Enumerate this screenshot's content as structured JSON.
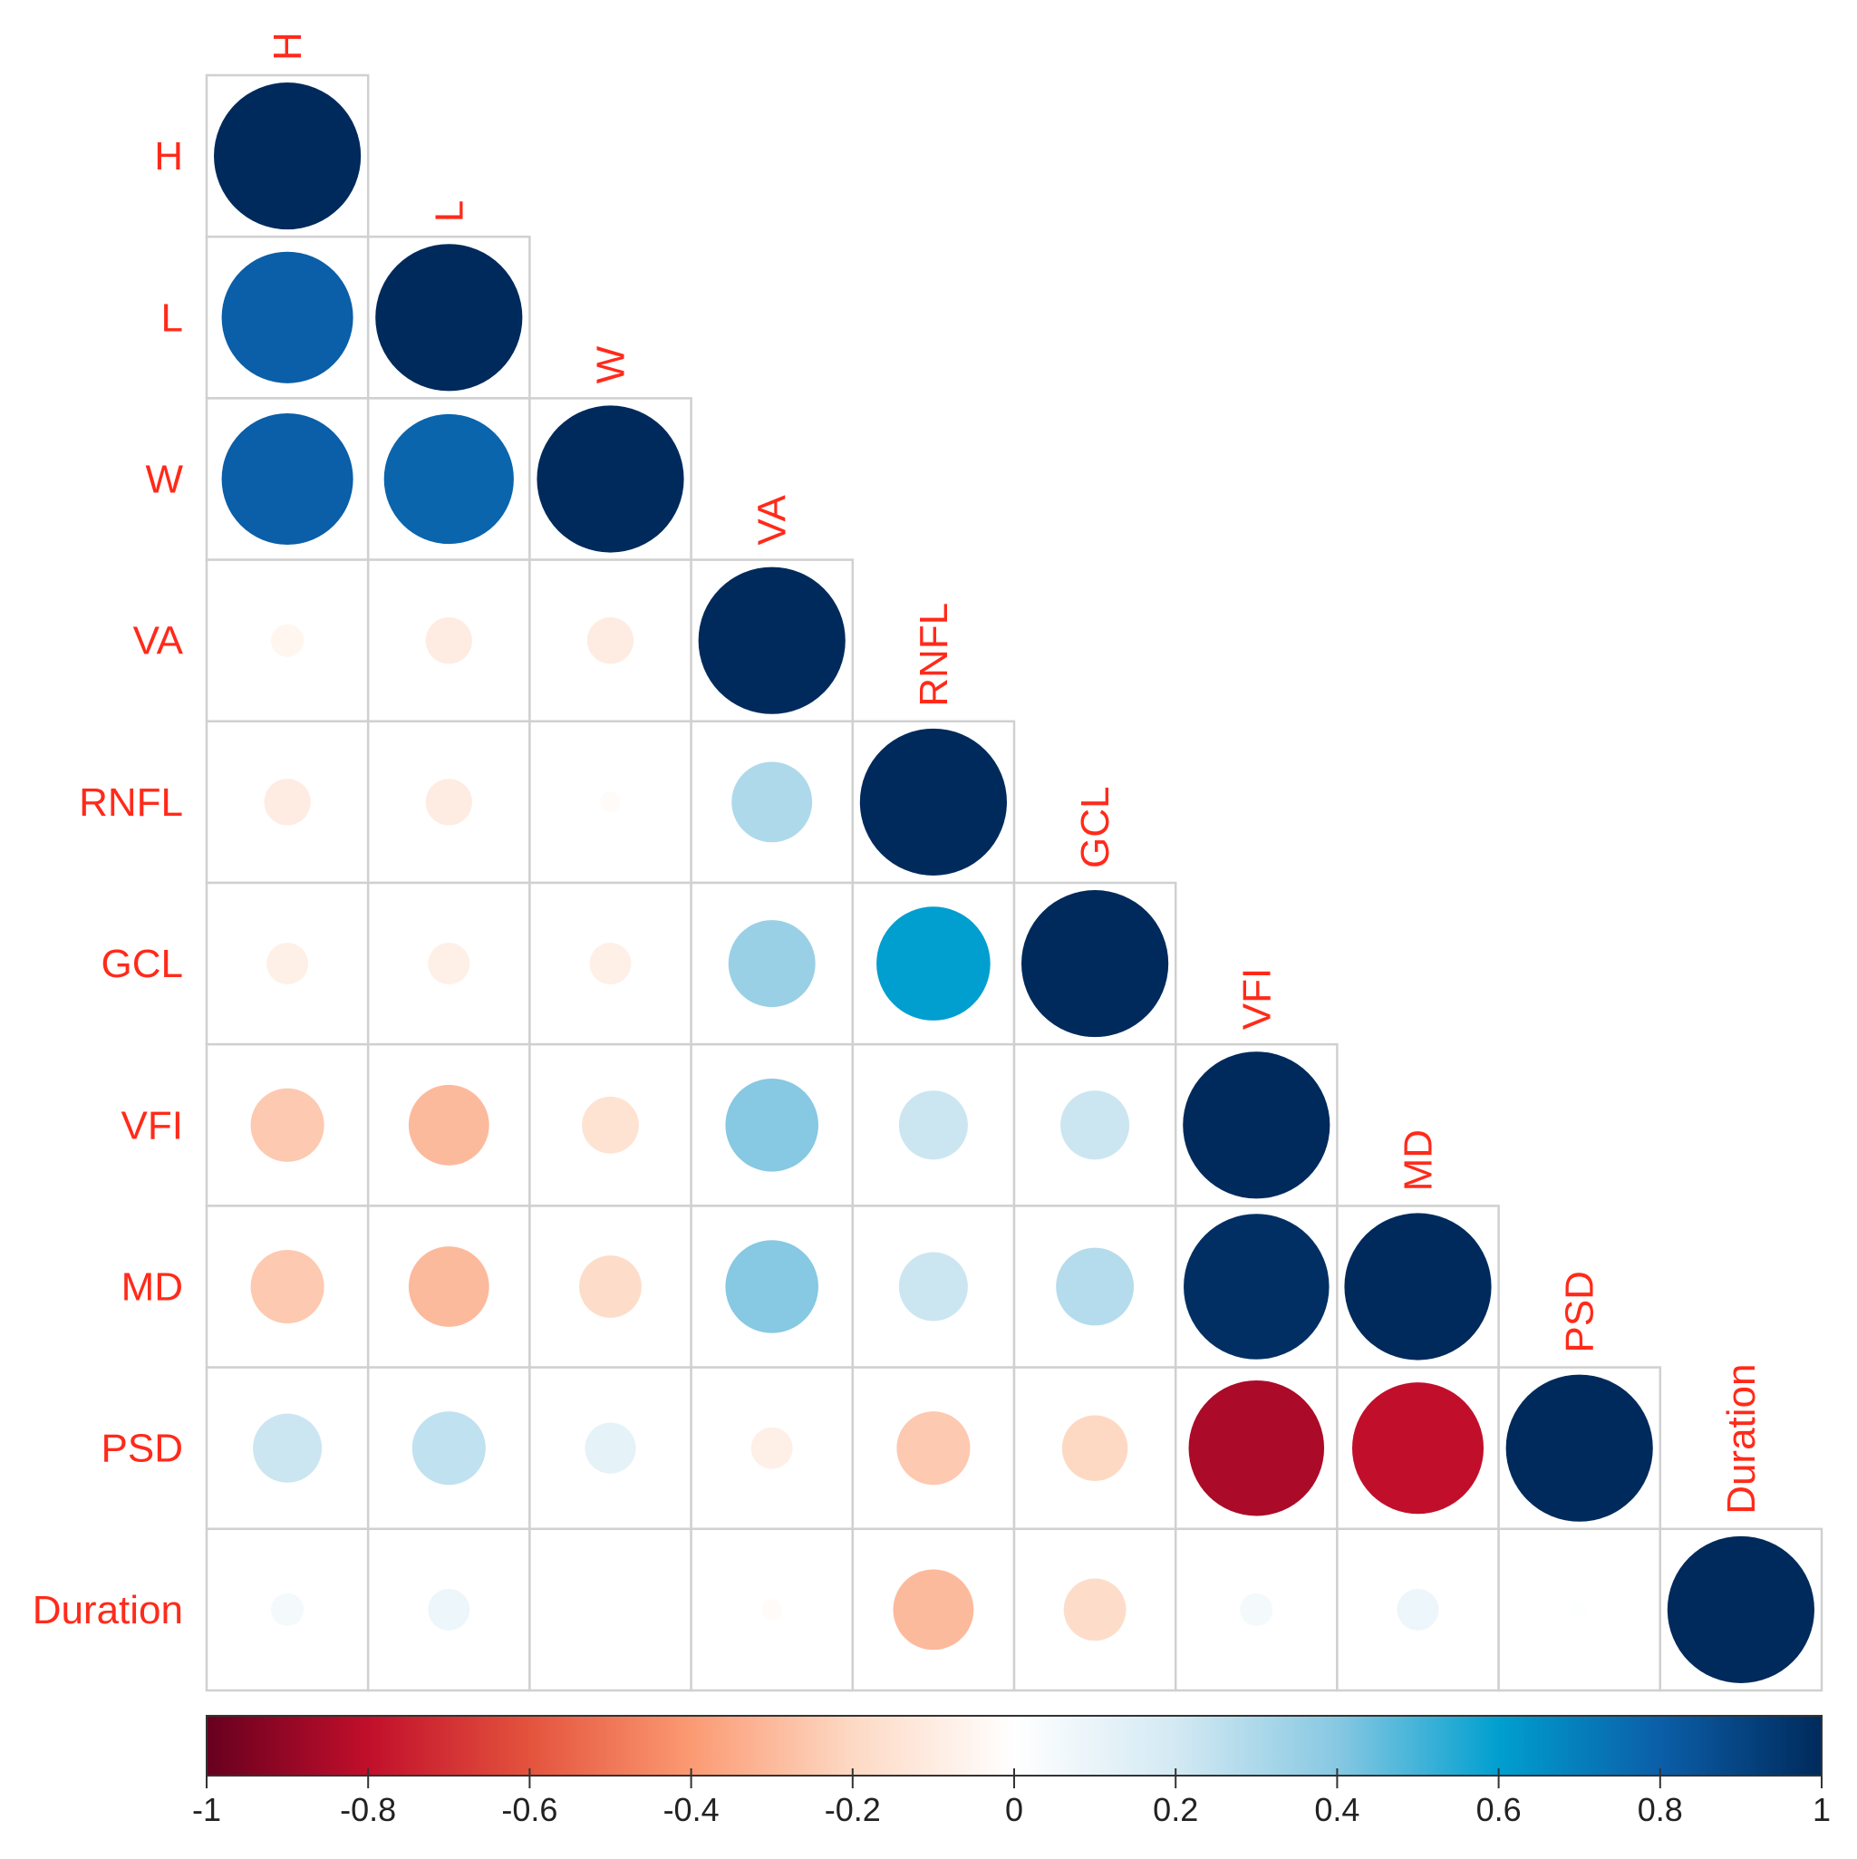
{
  "chart_data": {
    "type": "heatmap",
    "style": "correlation-circles-lower-triangle",
    "title": "",
    "variables": [
      "H",
      "L",
      "W",
      "VA",
      "RNFL",
      "GCL",
      "VFI",
      "MD",
      "PSD",
      "Duration"
    ],
    "matrix": [
      [
        1.0,
        null,
        null,
        null,
        null,
        null,
        null,
        null,
        null,
        null
      ],
      [
        0.8,
        1.0,
        null,
        null,
        null,
        null,
        null,
        null,
        null,
        null
      ],
      [
        0.8,
        0.78,
        1.0,
        null,
        null,
        null,
        null,
        null,
        null,
        null
      ],
      [
        -0.05,
        -0.1,
        -0.1,
        1.0,
        null,
        null,
        null,
        null,
        null,
        null
      ],
      [
        -0.1,
        -0.1,
        -0.02,
        0.3,
        1.0,
        null,
        null,
        null,
        null,
        null
      ],
      [
        -0.08,
        -0.08,
        -0.08,
        0.35,
        0.6,
        1.0,
        null,
        null,
        null,
        null
      ],
      [
        -0.25,
        -0.3,
        -0.15,
        0.4,
        0.22,
        0.22,
        1.0,
        null,
        null,
        null
      ],
      [
        -0.25,
        -0.3,
        -0.18,
        0.4,
        0.22,
        0.28,
        0.98,
        1.0,
        null,
        null
      ],
      [
        0.22,
        0.25,
        0.12,
        -0.08,
        -0.25,
        -0.2,
        -0.85,
        -0.8,
        1.0,
        null
      ],
      [
        0.05,
        0.08,
        0.0,
        -0.02,
        -0.3,
        -0.18,
        0.05,
        0.08,
        0.01,
        1.0
      ]
    ],
    "colorbar": {
      "range": [
        -1,
        1
      ],
      "ticks": [
        "-1",
        "-0.8",
        "-0.6",
        "-0.4",
        "-0.2",
        "0",
        "0.2",
        "0.4",
        "0.6",
        "0.8",
        "1"
      ],
      "stops": [
        {
          "v": -1.0,
          "c": "#67001f"
        },
        {
          "v": -0.8,
          "c": "#c10f2b"
        },
        {
          "v": -0.6,
          "c": "#e4533d"
        },
        {
          "v": -0.4,
          "c": "#fb9a73"
        },
        {
          "v": -0.2,
          "c": "#fdd9c4"
        },
        {
          "v": 0.0,
          "c": "#ffffff"
        },
        {
          "v": 0.2,
          "c": "#d3e9f3"
        },
        {
          "v": 0.4,
          "c": "#87c8e2"
        },
        {
          "v": 0.6,
          "c": "#009fcf"
        },
        {
          "v": 0.8,
          "c": "#0b5ea8"
        },
        {
          "v": 1.0,
          "c": "#002a5c"
        }
      ]
    },
    "label_color": "#ff2a1a",
    "grid_color": "#d0d0d0"
  }
}
